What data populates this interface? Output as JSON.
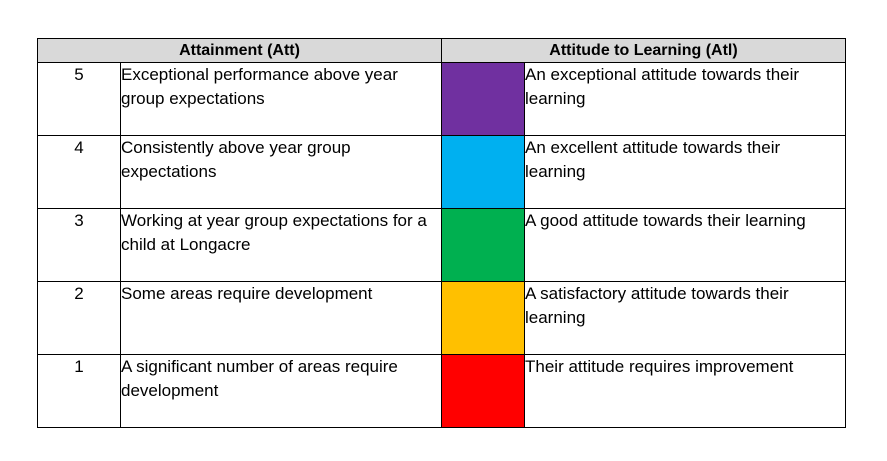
{
  "table": {
    "header": {
      "attainment": "Attainment (Att)",
      "attitude": "Attitude to Learning (Atl)"
    },
    "rows": [
      {
        "score": "5",
        "attainment_desc": "Exceptional performance above year group expectations",
        "color": "#7030a0",
        "attitude_desc": "An exceptional attitude towards their learning"
      },
      {
        "score": "4",
        "attainment_desc": "Consistently above year group expectations",
        "color": "#00b0f0",
        "attitude_desc": "An excellent attitude towards their learning"
      },
      {
        "score": "3",
        "attainment_desc": "Working at year group expectations for a child at Longacre",
        "color": "#00b050",
        "attitude_desc": "A good attitude towards their learning"
      },
      {
        "score": "2",
        "attainment_desc": "Some areas require development",
        "color": "#ffc000",
        "attitude_desc": "A satisfactory attitude towards their learning"
      },
      {
        "score": "1",
        "attainment_desc": "A significant number of areas require development",
        "color": "#ff0000",
        "attitude_desc": "Their attitude requires improvement"
      }
    ]
  }
}
